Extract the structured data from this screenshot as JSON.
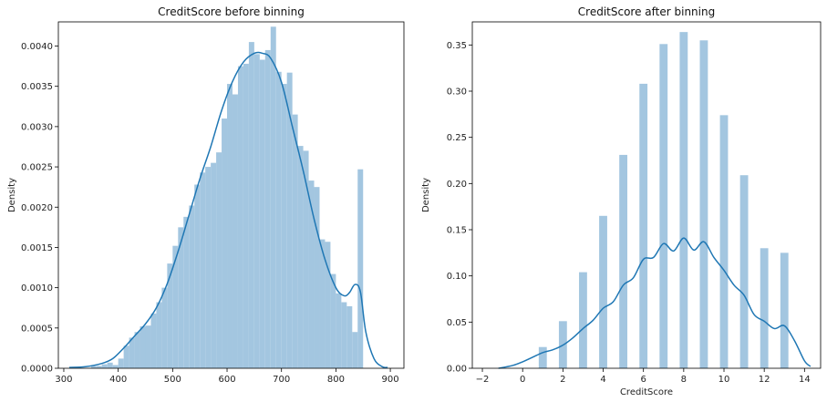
{
  "colors": {
    "bar": "#a3c6e0",
    "kde": "#1f77b4"
  },
  "chart_data": [
    {
      "type": "bar",
      "title": "CreditScore before binning",
      "xlabel": "",
      "ylabel": "Density",
      "xlim": [
        290,
        925
      ],
      "ylim": [
        0,
        0.0043
      ],
      "x_ticks": [
        300,
        400,
        500,
        600,
        700,
        800,
        900
      ],
      "y_ticks": [
        0.0,
        0.0005,
        0.001,
        0.0015,
        0.002,
        0.0025,
        0.003,
        0.0035,
        0.004
      ],
      "y_tick_labels": [
        "0.0000",
        "0.0005",
        "0.0010",
        "0.0015",
        "0.0020",
        "0.0025",
        "0.0030",
        "0.0035",
        "0.0040"
      ],
      "bin_width": 10,
      "bins": [
        [
          350,
          3e-05
        ],
        [
          360,
          3e-05
        ],
        [
          370,
          5e-05
        ],
        [
          380,
          7e-05
        ],
        [
          390,
          4e-05
        ],
        [
          400,
          0.00012
        ],
        [
          410,
          0.00028
        ],
        [
          420,
          0.00038
        ],
        [
          430,
          0.00045
        ],
        [
          440,
          0.00052
        ],
        [
          450,
          0.00053
        ],
        [
          460,
          0.00068
        ],
        [
          470,
          0.00082
        ],
        [
          480,
          0.001
        ],
        [
          490,
          0.0013
        ],
        [
          500,
          0.00152
        ],
        [
          510,
          0.00175
        ],
        [
          520,
          0.00188
        ],
        [
          530,
          0.00202
        ],
        [
          540,
          0.00228
        ],
        [
          550,
          0.00243
        ],
        [
          560,
          0.0025
        ],
        [
          570,
          0.00255
        ],
        [
          580,
          0.00268
        ],
        [
          590,
          0.0031
        ],
        [
          600,
          0.00353
        ],
        [
          610,
          0.0034
        ],
        [
          620,
          0.00375
        ],
        [
          630,
          0.00378
        ],
        [
          640,
          0.00405
        ],
        [
          650,
          0.0039
        ],
        [
          660,
          0.00383
        ],
        [
          670,
          0.00395
        ],
        [
          680,
          0.00424
        ],
        [
          690,
          0.00368
        ],
        [
          700,
          0.00353
        ],
        [
          710,
          0.00367
        ],
        [
          720,
          0.00315
        ],
        [
          730,
          0.00276
        ],
        [
          740,
          0.0027
        ],
        [
          750,
          0.00233
        ],
        [
          760,
          0.00225
        ],
        [
          770,
          0.0016
        ],
        [
          780,
          0.00157
        ],
        [
          790,
          0.00117
        ],
        [
          800,
          0.00093
        ],
        [
          810,
          0.00082
        ],
        [
          820,
          0.00077
        ],
        [
          830,
          0.00045
        ],
        [
          840,
          0.00247
        ]
      ],
      "kde": {
        "x": [
          310,
          340,
          370,
          390,
          410,
          430,
          450,
          470,
          490,
          510,
          530,
          550,
          570,
          590,
          610,
          630,
          650,
          665,
          680,
          700,
          720,
          740,
          760,
          780,
          800,
          815,
          825,
          835,
          845,
          855,
          870,
          885,
          895
        ],
        "y": [
          1e-05,
          2e-05,
          6e-05,
          0.00012,
          0.00025,
          0.0004,
          0.00055,
          0.00075,
          0.00105,
          0.00145,
          0.0019,
          0.00235,
          0.00275,
          0.0032,
          0.00356,
          0.0038,
          0.00391,
          0.00391,
          0.00385,
          0.00355,
          0.003,
          0.00245,
          0.00185,
          0.00135,
          0.001,
          0.0009,
          0.00094,
          0.00104,
          0.00095,
          0.00045,
          0.00012,
          2e-05,
          1e-05
        ]
      }
    },
    {
      "type": "bar",
      "title": "CreditScore after binning",
      "xlabel": "CreditScore",
      "ylabel": "Density",
      "xlim": [
        -2.5,
        14.8
      ],
      "ylim": [
        0,
        0.375
      ],
      "x_ticks": [
        -2,
        0,
        2,
        4,
        6,
        8,
        10,
        12,
        14
      ],
      "x_tick_labels": [
        "−2",
        "0",
        "2",
        "4",
        "6",
        "8",
        "10",
        "12",
        "14"
      ],
      "y_ticks": [
        0.0,
        0.05,
        0.1,
        0.15,
        0.2,
        0.25,
        0.3,
        0.35
      ],
      "y_tick_labels": [
        "0.00",
        "0.05",
        "0.10",
        "0.15",
        "0.20",
        "0.25",
        "0.30",
        "0.35"
      ],
      "bin_width": 0.4,
      "bins": [
        [
          1,
          0.023
        ],
        [
          2,
          0.051
        ],
        [
          3,
          0.104
        ],
        [
          4,
          0.165
        ],
        [
          5,
          0.231
        ],
        [
          6,
          0.308
        ],
        [
          7,
          0.351
        ],
        [
          8,
          0.364
        ],
        [
          9,
          0.355
        ],
        [
          10,
          0.274
        ],
        [
          11,
          0.209
        ],
        [
          12,
          0.13
        ],
        [
          13,
          0.125
        ]
      ],
      "kde": {
        "x": [
          -1.2,
          -0.5,
          0,
          0.5,
          1,
          1.5,
          2,
          2.5,
          3,
          3.5,
          4,
          4.5,
          5,
          5.5,
          6,
          6.5,
          7,
          7.5,
          8,
          8.5,
          9,
          9.5,
          10,
          10.5,
          11,
          11.5,
          12,
          12.5,
          13,
          13.5,
          14,
          14.3
        ],
        "y": [
          0.0,
          0.003,
          0.007,
          0.012,
          0.017,
          0.02,
          0.025,
          0.033,
          0.043,
          0.052,
          0.065,
          0.072,
          0.09,
          0.098,
          0.118,
          0.12,
          0.135,
          0.127,
          0.141,
          0.128,
          0.137,
          0.12,
          0.106,
          0.09,
          0.079,
          0.058,
          0.051,
          0.043,
          0.046,
          0.03,
          0.008,
          0.002
        ]
      }
    }
  ]
}
